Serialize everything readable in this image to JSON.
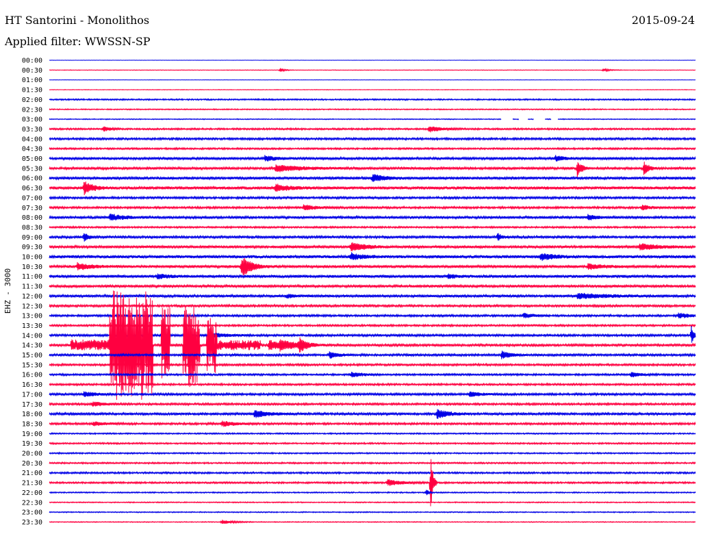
{
  "header": {
    "station": "HT Santorini - Monolithos",
    "date": "2015-09-24",
    "filter": "Applied filter: WWSSN-SP"
  },
  "channel_label": "EHZ - 3000",
  "colors": {
    "even_trace": "#0000e6",
    "odd_trace": "#ff0040",
    "text": "#000000",
    "background": "#ffffff"
  },
  "chart_data": {
    "type": "line",
    "title": "HT Santorini - Monolithos",
    "date": "2015-09-24",
    "ylabel": "EHZ - 3000",
    "filter": "WWSSN-SP",
    "row_labels": [
      "00:00",
      "00:30",
      "01:00",
      "01:30",
      "02:00",
      "02:30",
      "03:00",
      "03:30",
      "04:00",
      "04:30",
      "05:00",
      "05:30",
      "06:00",
      "06:30",
      "07:00",
      "07:30",
      "08:00",
      "08:30",
      "09:00",
      "09:30",
      "10:00",
      "10:30",
      "11:00",
      "11:30",
      "12:00",
      "12:30",
      "13:00",
      "13:30",
      "14:00",
      "14:30",
      "15:00",
      "15:30",
      "16:00",
      "16:30",
      "17:00",
      "17:30",
      "18:00",
      "18:30",
      "19:00",
      "19:30",
      "20:00",
      "20:30",
      "21:00",
      "21:30",
      "22:00",
      "22:30",
      "23:00",
      "23:30"
    ],
    "row_minutes": 30,
    "color_cycle": [
      "blue",
      "red"
    ],
    "noise_level": [
      0.2,
      0.3,
      0.2,
      0.3,
      0.8,
      0.6,
      0.5,
      1.0,
      1.2,
      1.0,
      1.5,
      1.4,
      1.6,
      1.8,
      1.3,
      1.2,
      1.5,
      1.0,
      1.4,
      1.5,
      1.8,
      1.6,
      1.7,
      1.5,
      1.5,
      1.3,
      1.2,
      1.1,
      1.3,
      1.4,
      1.3,
      1.2,
      1.1,
      1.1,
      1.3,
      1.2,
      1.4,
      1.2,
      0.8,
      0.9,
      0.8,
      0.9,
      1.0,
      1.0,
      0.7,
      0.6,
      0.6,
      0.5
    ],
    "events": [
      {
        "row": 1,
        "minute": 10.7,
        "amplitude": 3,
        "duration_min": 0.2
      },
      {
        "row": 1,
        "minute": 25.7,
        "amplitude": 2,
        "duration_min": 0.3
      },
      {
        "row": 7,
        "minute": 2.5,
        "amplitude": 4,
        "duration_min": 0.3
      },
      {
        "row": 7,
        "minute": 17.6,
        "amplitude": 5,
        "duration_min": 0.5
      },
      {
        "row": 10,
        "minute": 10.0,
        "amplitude": 4,
        "duration_min": 0.5
      },
      {
        "row": 10,
        "minute": 23.5,
        "amplitude": 4,
        "duration_min": 0.4
      },
      {
        "row": 11,
        "minute": 10.5,
        "amplitude": 5,
        "duration_min": 1.2
      },
      {
        "row": 11,
        "minute": 24.5,
        "amplitude": 14,
        "duration_min": 0.2
      },
      {
        "row": 11,
        "minute": 27.6,
        "amplitude": 11,
        "duration_min": 0.2
      },
      {
        "row": 12,
        "minute": 15.0,
        "amplitude": 6,
        "duration_min": 0.5
      },
      {
        "row": 13,
        "minute": 1.6,
        "amplitude": 10,
        "duration_min": 0.4
      },
      {
        "row": 13,
        "minute": 10.5,
        "amplitude": 5,
        "duration_min": 0.6
      },
      {
        "row": 13,
        "minute": 31.0,
        "amplitude": 9,
        "duration_min": 0.5
      },
      {
        "row": 15,
        "minute": 11.8,
        "amplitude": 4,
        "duration_min": 0.6
      },
      {
        "row": 15,
        "minute": 27.5,
        "amplitude": 4,
        "duration_min": 0.4
      },
      {
        "row": 16,
        "minute": 2.8,
        "amplitude": 5,
        "duration_min": 0.6
      },
      {
        "row": 16,
        "minute": 25.0,
        "amplitude": 4,
        "duration_min": 0.4
      },
      {
        "row": 18,
        "minute": 1.6,
        "amplitude": 7,
        "duration_min": 0.2
      },
      {
        "row": 18,
        "minute": 20.8,
        "amplitude": 6,
        "duration_min": 0.2
      },
      {
        "row": 19,
        "minute": 14.0,
        "amplitude": 7,
        "duration_min": 0.6
      },
      {
        "row": 19,
        "minute": 27.4,
        "amplitude": 5,
        "duration_min": 0.8
      },
      {
        "row": 20,
        "minute": 14.0,
        "amplitude": 5,
        "duration_min": 0.5
      },
      {
        "row": 20,
        "minute": 22.8,
        "amplitude": 5,
        "duration_min": 0.6
      },
      {
        "row": 21,
        "minute": 1.3,
        "amplitude": 5,
        "duration_min": 0.7
      },
      {
        "row": 21,
        "minute": 9.0,
        "amplitude": 5,
        "duration_min": 0.6
      },
      {
        "row": 21,
        "minute": 8.9,
        "amplitude": 16,
        "duration_min": 0.3
      },
      {
        "row": 21,
        "minute": 25.0,
        "amplitude": 4,
        "duration_min": 0.7
      },
      {
        "row": 22,
        "minute": 5.0,
        "amplitude": 4,
        "duration_min": 0.5
      },
      {
        "row": 22,
        "minute": 18.5,
        "amplitude": 3,
        "duration_min": 0.4
      },
      {
        "row": 24,
        "minute": 11.0,
        "amplitude": 3,
        "duration_min": 0.4
      },
      {
        "row": 24,
        "minute": 24.5,
        "amplitude": 4,
        "duration_min": 1.4
      },
      {
        "row": 26,
        "minute": 22.0,
        "amplitude": 4,
        "duration_min": 0.4
      },
      {
        "row": 26,
        "minute": 29.2,
        "amplitude": 4,
        "duration_min": 0.5
      },
      {
        "row": 28,
        "minute": 7.4,
        "amplitude": 5,
        "duration_min": 0.6
      },
      {
        "row": 28,
        "minute": 29.8,
        "amplitude": 16,
        "duration_min": 0.1
      },
      {
        "row": 29,
        "minute": 10.2,
        "amplitude": 8,
        "duration_min": 0.6
      },
      {
        "row": 29,
        "minute": 10.7,
        "amplitude": 6,
        "duration_min": 0.8
      },
      {
        "row": 29,
        "minute": 11.6,
        "amplitude": 10,
        "duration_min": 0.3
      },
      {
        "row": 30,
        "minute": 13.0,
        "amplitude": 5,
        "duration_min": 0.4
      },
      {
        "row": 30,
        "minute": 21.0,
        "amplitude": 6,
        "duration_min": 0.4
      },
      {
        "row": 32,
        "minute": 14.0,
        "amplitude": 4,
        "duration_min": 0.5
      },
      {
        "row": 32,
        "minute": 27.0,
        "amplitude": 4,
        "duration_min": 0.4
      },
      {
        "row": 34,
        "minute": 1.6,
        "amplitude": 4,
        "duration_min": 0.5
      },
      {
        "row": 34,
        "minute": 19.5,
        "amplitude": 4,
        "duration_min": 0.5
      },
      {
        "row": 35,
        "minute": 2.0,
        "amplitude": 4,
        "duration_min": 0.5
      },
      {
        "row": 36,
        "minute": 9.5,
        "amplitude": 6,
        "duration_min": 0.6
      },
      {
        "row": 36,
        "minute": 18.0,
        "amplitude": 7,
        "duration_min": 0.5
      },
      {
        "row": 37,
        "minute": 2.0,
        "amplitude": 3,
        "duration_min": 0.6
      },
      {
        "row": 37,
        "minute": 8.0,
        "amplitude": 4,
        "duration_min": 0.6
      },
      {
        "row": 43,
        "minute": 15.7,
        "amplitude": 5,
        "duration_min": 0.6
      },
      {
        "row": 43,
        "minute": 17.7,
        "amplitude": 45,
        "duration_min": 0.1
      },
      {
        "row": 44,
        "minute": 17.5,
        "amplitude": 5,
        "duration_min": 0.1
      },
      {
        "row": 47,
        "minute": 8.0,
        "amplitude": 3,
        "duration_min": 0.5
      }
    ],
    "bursts": [
      {
        "row": 29,
        "start_minute": 2.8,
        "end_minute": 4.8,
        "amplitude": 80
      },
      {
        "row": 29,
        "start_minute": 5.2,
        "end_minute": 5.6,
        "amplitude": 55
      },
      {
        "row": 29,
        "start_minute": 6.2,
        "end_minute": 7.0,
        "amplitude": 60
      },
      {
        "row": 29,
        "start_minute": 7.3,
        "end_minute": 7.8,
        "amplitude": 40
      },
      {
        "row": 29,
        "start_minute": 1.0,
        "end_minute": 2.8,
        "amplitude": 7
      },
      {
        "row": 29,
        "start_minute": 7.8,
        "end_minute": 9.8,
        "amplitude": 6
      }
    ],
    "gaps": [
      {
        "row": 6,
        "start_minute": 21.0,
        "end_minute": 21.5
      },
      {
        "row": 6,
        "start_minute": 21.8,
        "end_minute": 22.2
      },
      {
        "row": 6,
        "start_minute": 22.5,
        "end_minute": 23.0
      },
      {
        "row": 6,
        "start_minute": 23.3,
        "end_minute": 23.6
      }
    ]
  }
}
